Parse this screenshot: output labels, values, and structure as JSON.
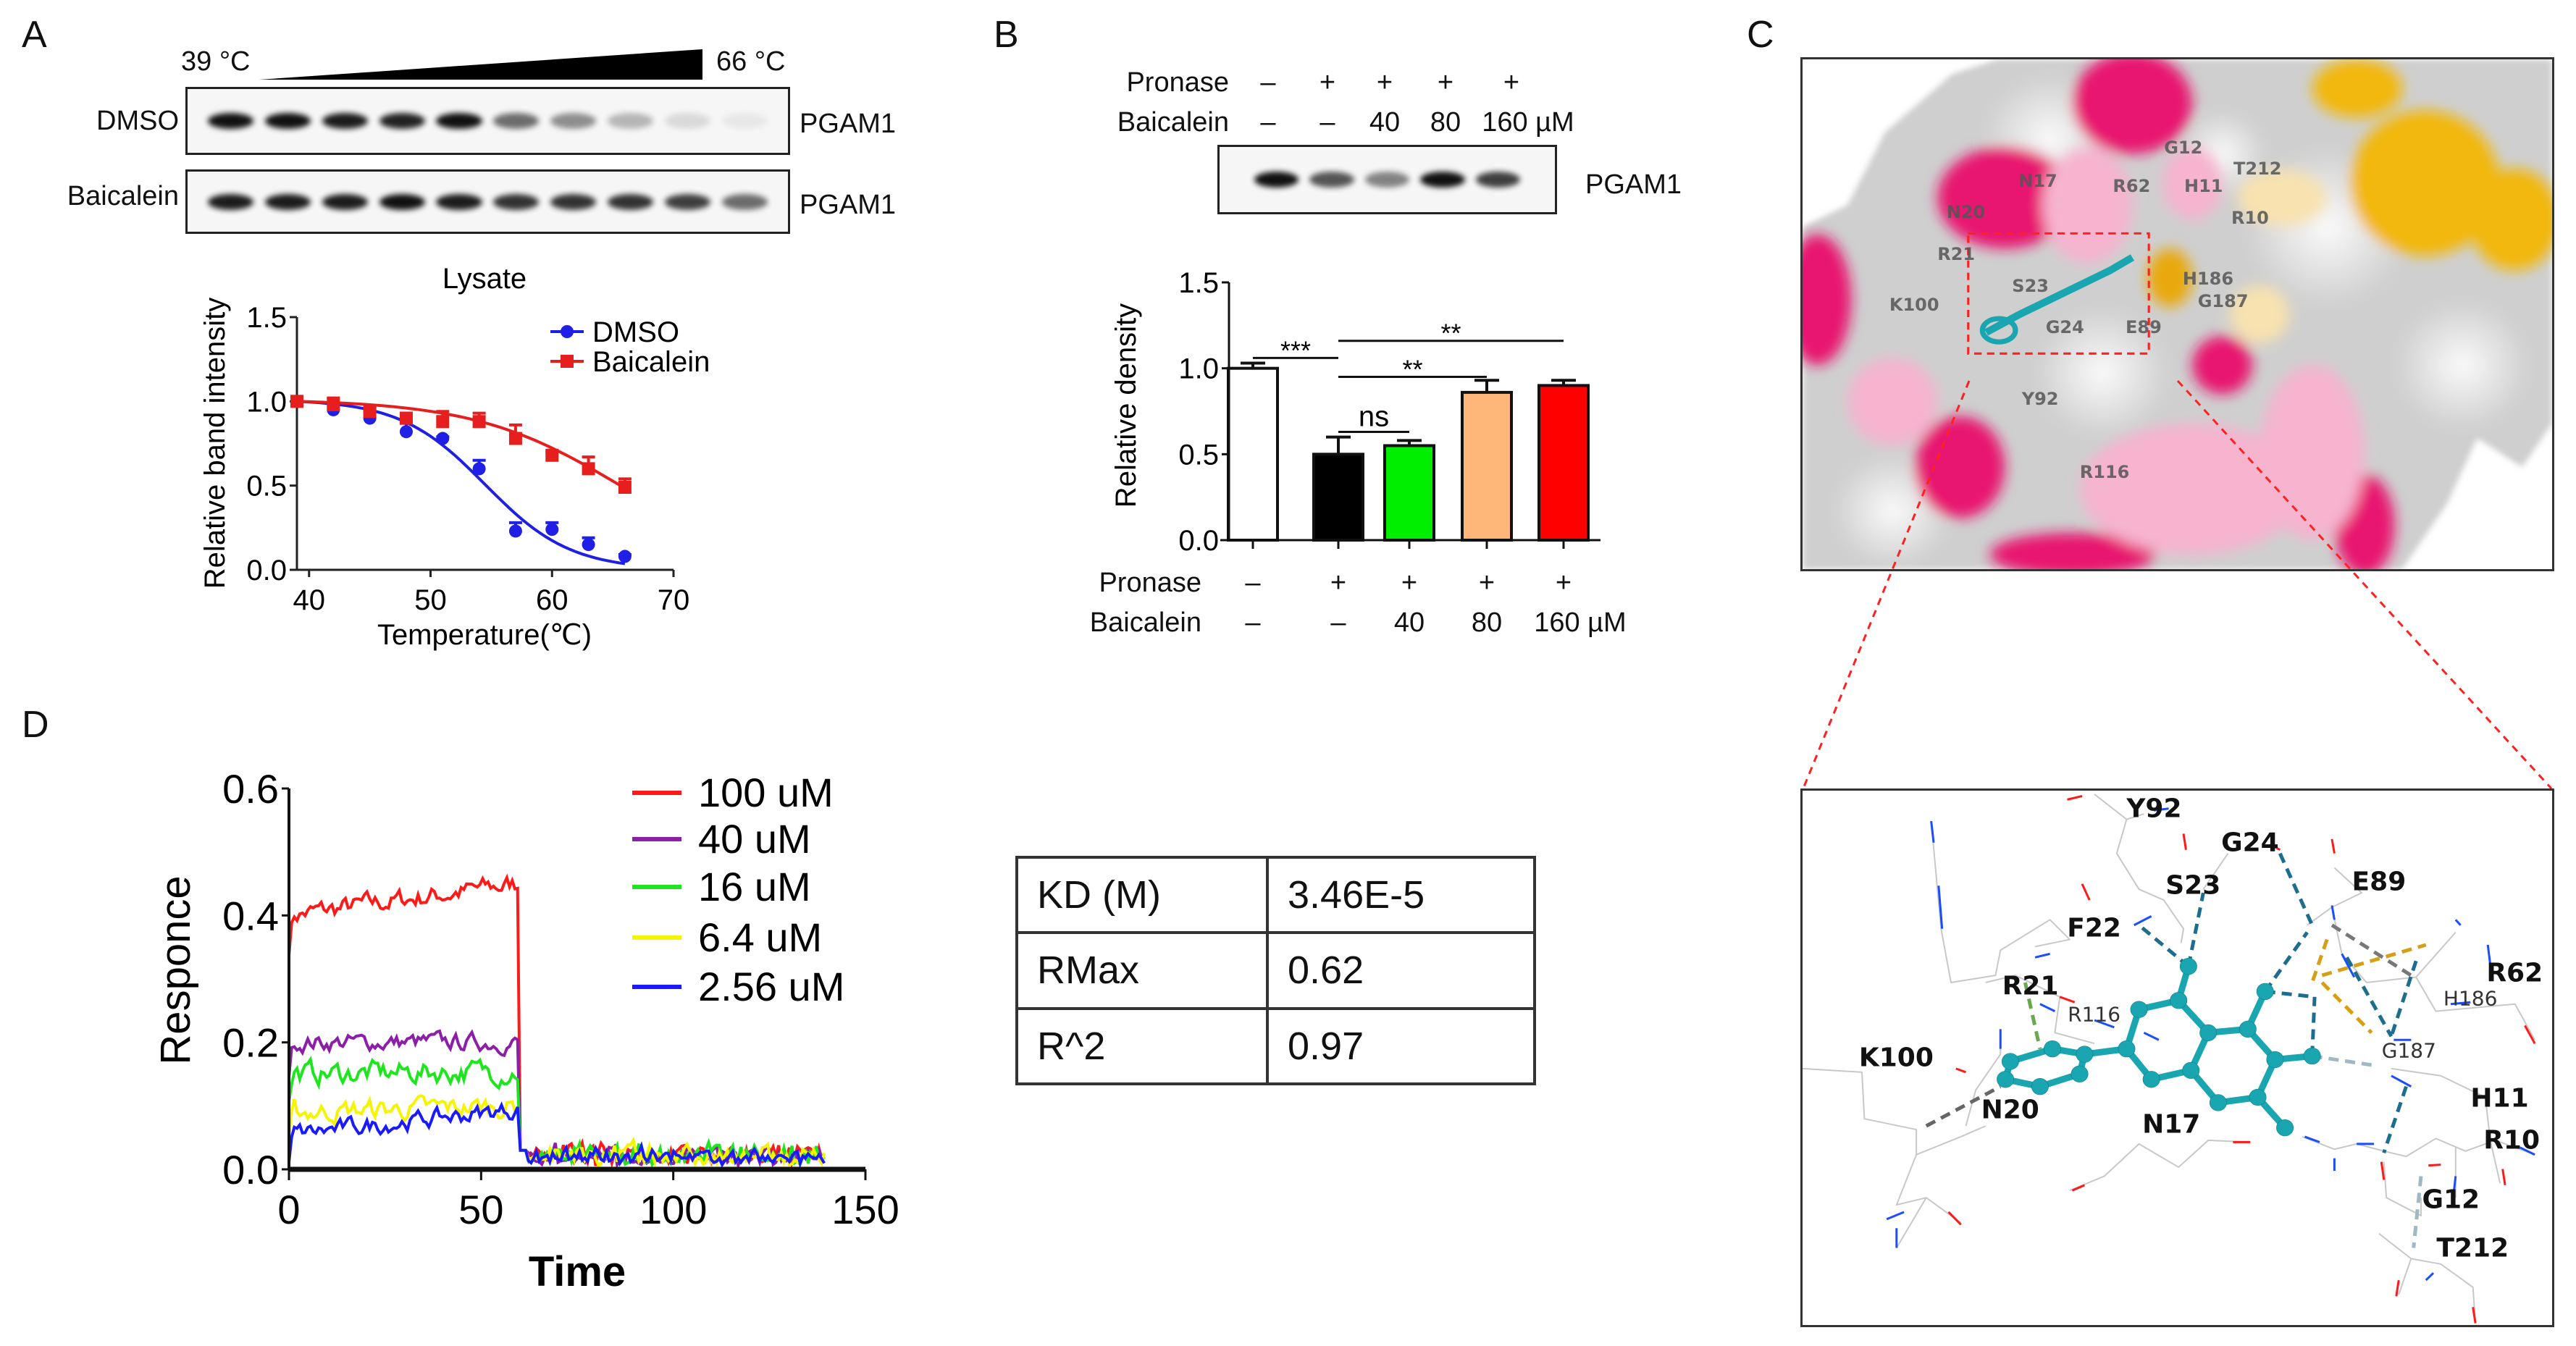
{
  "panel_labels": {
    "a": "A",
    "b": "B",
    "c": "C",
    "d": "D"
  },
  "panel_a": {
    "temp_low": "39 °C",
    "temp_high": "66 °C",
    "blots": [
      {
        "label": "DMSO",
        "target": "PGAM1",
        "band_intensity": [
          1,
          1,
          0.95,
          0.92,
          1,
          0.6,
          0.45,
          0.28,
          0.12,
          0.06
        ]
      },
      {
        "label": "Baicalein",
        "target": "PGAM1",
        "band_intensity": [
          0.95,
          0.95,
          0.95,
          1,
          0.95,
          0.85,
          0.85,
          0.85,
          0.8,
          0.6
        ]
      }
    ],
    "chart_title": "Lysate"
  },
  "panel_b": {
    "rows": [
      {
        "label": "Pronase",
        "values": [
          "–",
          "+",
          "+",
          "+",
          "+"
        ]
      },
      {
        "label": "Baicalein",
        "values": [
          "–",
          "–",
          "40",
          "80",
          "160 µM"
        ]
      }
    ],
    "blot": {
      "target": "PGAM1",
      "band_intensity": [
        1,
        0.7,
        0.5,
        1,
        0.8
      ]
    }
  },
  "panel_c": {
    "surface_labels": [
      "N17",
      "N20",
      "R21",
      "K100",
      "S23",
      "G24",
      "Y92",
      "R116",
      "G12",
      "T212",
      "R62",
      "H11",
      "R10",
      "H186",
      "G187",
      "E89"
    ],
    "detail_labels": [
      "Y92",
      "G24",
      "S23",
      "E89",
      "F22",
      "R21",
      "R116",
      "R62",
      "H186",
      "G187",
      "K100",
      "N20",
      "N17",
      "H11",
      "R10",
      "G12",
      "T212"
    ],
    "colors": {
      "hot": "#e8176f",
      "warm": "#f6b4cf",
      "yellow": "#f2b80a",
      "ligand": "#1aa6b0"
    }
  },
  "panel_d": {
    "table": [
      {
        "param": "KD (M)",
        "value": "3.46E-5"
      },
      {
        "param": "RMax",
        "value": "0.62"
      },
      {
        "param": "R^2",
        "value": "0.97"
      }
    ]
  },
  "chart_data": [
    {
      "type": "scatter",
      "title": "Lysate",
      "xlabel": "Temperature(℃)",
      "ylabel": "Relative band intensity",
      "xlim": [
        39,
        70
      ],
      "ylim": [
        0,
        1.5
      ],
      "xticks": [
        "40",
        "50",
        "60",
        "70"
      ],
      "yticks": [
        "0.0",
        "0.5",
        "1.0",
        "1.5"
      ],
      "legend_position": "top-right",
      "x": [
        39,
        42,
        45,
        48,
        51,
        54,
        57,
        60,
        63,
        66
      ],
      "series": [
        {
          "name": "DMSO",
          "color": "#1f1fe6",
          "marker": "circle",
          "values": [
            1.0,
            0.95,
            0.9,
            0.82,
            0.78,
            0.6,
            0.23,
            0.24,
            0.15,
            0.08
          ],
          "errors": [
            0.02,
            0.04,
            0.04,
            0.05,
            0.01,
            0.05,
            0.05,
            0.04,
            0.04,
            0.01
          ],
          "fit": {
            "tm": 54.5,
            "k": 3.5
          }
        },
        {
          "name": "Baicalein",
          "color": "#e61e1e",
          "marker": "square",
          "values": [
            1.0,
            0.98,
            0.94,
            0.9,
            0.88,
            0.88,
            0.78,
            0.68,
            0.6,
            0.49
          ],
          "errors": [
            0.02,
            0.04,
            0.03,
            0.03,
            0.06,
            0.05,
            0.08,
            0.02,
            0.07,
            0.05
          ],
          "fit": {
            "tm": 65.5,
            "k": 6
          }
        }
      ]
    },
    {
      "type": "bar",
      "xlabel": "",
      "ylabel": "Relative density",
      "ylim": [
        0,
        1.5
      ],
      "yticks": [
        "0.0",
        "0.5",
        "1.0",
        "1.5"
      ],
      "categories": [
        "Pronase – / Baicalein –",
        "Pronase + / Baicalein –",
        "Pronase + / Baicalein 40 µM",
        "Pronase + / Baicalein 80 µM",
        "Pronase + / Baicalein 160 µM"
      ],
      "values": [
        1.0,
        0.5,
        0.55,
        0.86,
        0.9
      ],
      "errors": [
        0.03,
        0.1,
        0.03,
        0.07,
        0.03
      ],
      "colors": [
        "#ffffff",
        "#000000",
        "#00ee00",
        "#ffb779",
        "#ff0000"
      ],
      "significance": [
        {
          "from": 0,
          "to": 1,
          "level": 1.06,
          "label": "***"
        },
        {
          "from": 1,
          "to": 4,
          "level": 1.16,
          "label": "**"
        },
        {
          "from": 1,
          "to": 3,
          "level": 0.95,
          "label": "**"
        },
        {
          "from": 1,
          "to": 2,
          "level": 0.63,
          "label": "ns"
        }
      ]
    },
    {
      "type": "line",
      "xlabel": "Time",
      "ylabel": "Responce",
      "xlim": [
        0,
        150
      ],
      "ylim": [
        0,
        0.6
      ],
      "xticks": [
        "0",
        "50",
        "100",
        "150"
      ],
      "yticks": [
        "0.0",
        "0.2",
        "0.4",
        "0.6"
      ],
      "legend_position": "top-right",
      "association_end": 60,
      "time_end": 140,
      "series": [
        {
          "name": "100 uM",
          "color": "#ff1a1a",
          "start": 0.4,
          "end": 0.45,
          "noise": 0.012
        },
        {
          "name": "40 uM",
          "color": "#8b1fa8",
          "start": 0.2,
          "end": 0.2,
          "noise": 0.01
        },
        {
          "name": "16 uM",
          "color": "#1ee61e",
          "start": 0.15,
          "end": 0.155,
          "noise": 0.013
        },
        {
          "name": "6.4 uM",
          "color": "#f5f500",
          "start": 0.09,
          "end": 0.1,
          "noise": 0.012
        },
        {
          "name": "2.56 uM",
          "color": "#1a1aff",
          "start": 0.055,
          "end": 0.095,
          "noise": 0.01
        }
      ]
    }
  ]
}
